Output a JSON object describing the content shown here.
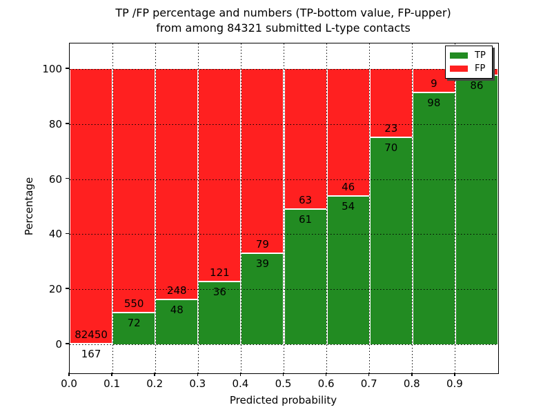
{
  "title": {
    "line1": "TP /FP percentage and numbers (TP-bottom value, FP-upper)",
    "line2": "from among 84321 submitted L-type contacts"
  },
  "axes": {
    "xlabel": "Predicted probability",
    "ylabel": "Percentage",
    "x_tick_labels": [
      "0.0",
      "0.1",
      "0.2",
      "0.3",
      "0.4",
      "0.5",
      "0.6",
      "0.7",
      "0.8",
      "0.9"
    ],
    "y_tick_labels": [
      "0",
      "20",
      "40",
      "60",
      "80",
      "100"
    ]
  },
  "legend": {
    "position": "upper-right",
    "entries": [
      {
        "label": "TP",
        "color": "#228B22"
      },
      {
        "label": "FP",
        "color": "#FF2020"
      }
    ]
  },
  "colors": {
    "tp": "#228B22",
    "fp": "#FF2020",
    "grid": "#000000",
    "frame": "#000000"
  },
  "chart_data": {
    "type": "bar",
    "stacked": true,
    "title": "TP /FP percentage and numbers (TP-bottom value, FP-upper)\nfrom among 84321 submitted L-type contacts",
    "xlabel": "Predicted probability",
    "ylabel": "Percentage",
    "xlim": [
      0.0,
      1.0
    ],
    "ylim": [
      -10.5,
      109.5
    ],
    "grid": true,
    "total_submitted": 84321,
    "contact_type": "L-type",
    "legend_entries": [
      "TP",
      "FP"
    ],
    "bin_width": 0.1,
    "bins": [
      {
        "range": "0.0-0.1",
        "tp_count": 167,
        "fp_count": 82450,
        "tp_pct": 0.2,
        "fp_pct": 99.8,
        "fp_label_visible": true
      },
      {
        "range": "0.1-0.2",
        "tp_count": 72,
        "fp_count": 550,
        "tp_pct": 11.6,
        "fp_pct": 88.4,
        "fp_label_visible": true
      },
      {
        "range": "0.2-0.3",
        "tp_count": 48,
        "fp_count": 248,
        "tp_pct": 16.2,
        "fp_pct": 83.8,
        "fp_label_visible": true
      },
      {
        "range": "0.3-0.4",
        "tp_count": 36,
        "fp_count": 121,
        "tp_pct": 22.9,
        "fp_pct": 77.1,
        "fp_label_visible": true
      },
      {
        "range": "0.4-0.5",
        "tp_count": 39,
        "fp_count": 79,
        "tp_pct": 33.1,
        "fp_pct": 66.9,
        "fp_label_visible": true
      },
      {
        "range": "0.5-0.6",
        "tp_count": 61,
        "fp_count": 63,
        "tp_pct": 49.2,
        "fp_pct": 50.8,
        "fp_label_visible": true
      },
      {
        "range": "0.6-0.7",
        "tp_count": 54,
        "fp_count": 46,
        "tp_pct": 54.0,
        "fp_pct": 46.0,
        "fp_label_visible": true
      },
      {
        "range": "0.7-0.8",
        "tp_count": 70,
        "fp_count": 23,
        "tp_pct": 75.3,
        "fp_pct": 24.7,
        "fp_label_visible": true
      },
      {
        "range": "0.8-0.9",
        "tp_count": 98,
        "fp_count": 9,
        "tp_pct": 91.6,
        "fp_pct": 8.4,
        "fp_label_visible": true
      },
      {
        "range": "0.9-1.0",
        "tp_count": 86,
        "fp_count": null,
        "tp_pct": 97.7,
        "fp_pct": 2.3,
        "fp_label_visible": false
      }
    ]
  }
}
